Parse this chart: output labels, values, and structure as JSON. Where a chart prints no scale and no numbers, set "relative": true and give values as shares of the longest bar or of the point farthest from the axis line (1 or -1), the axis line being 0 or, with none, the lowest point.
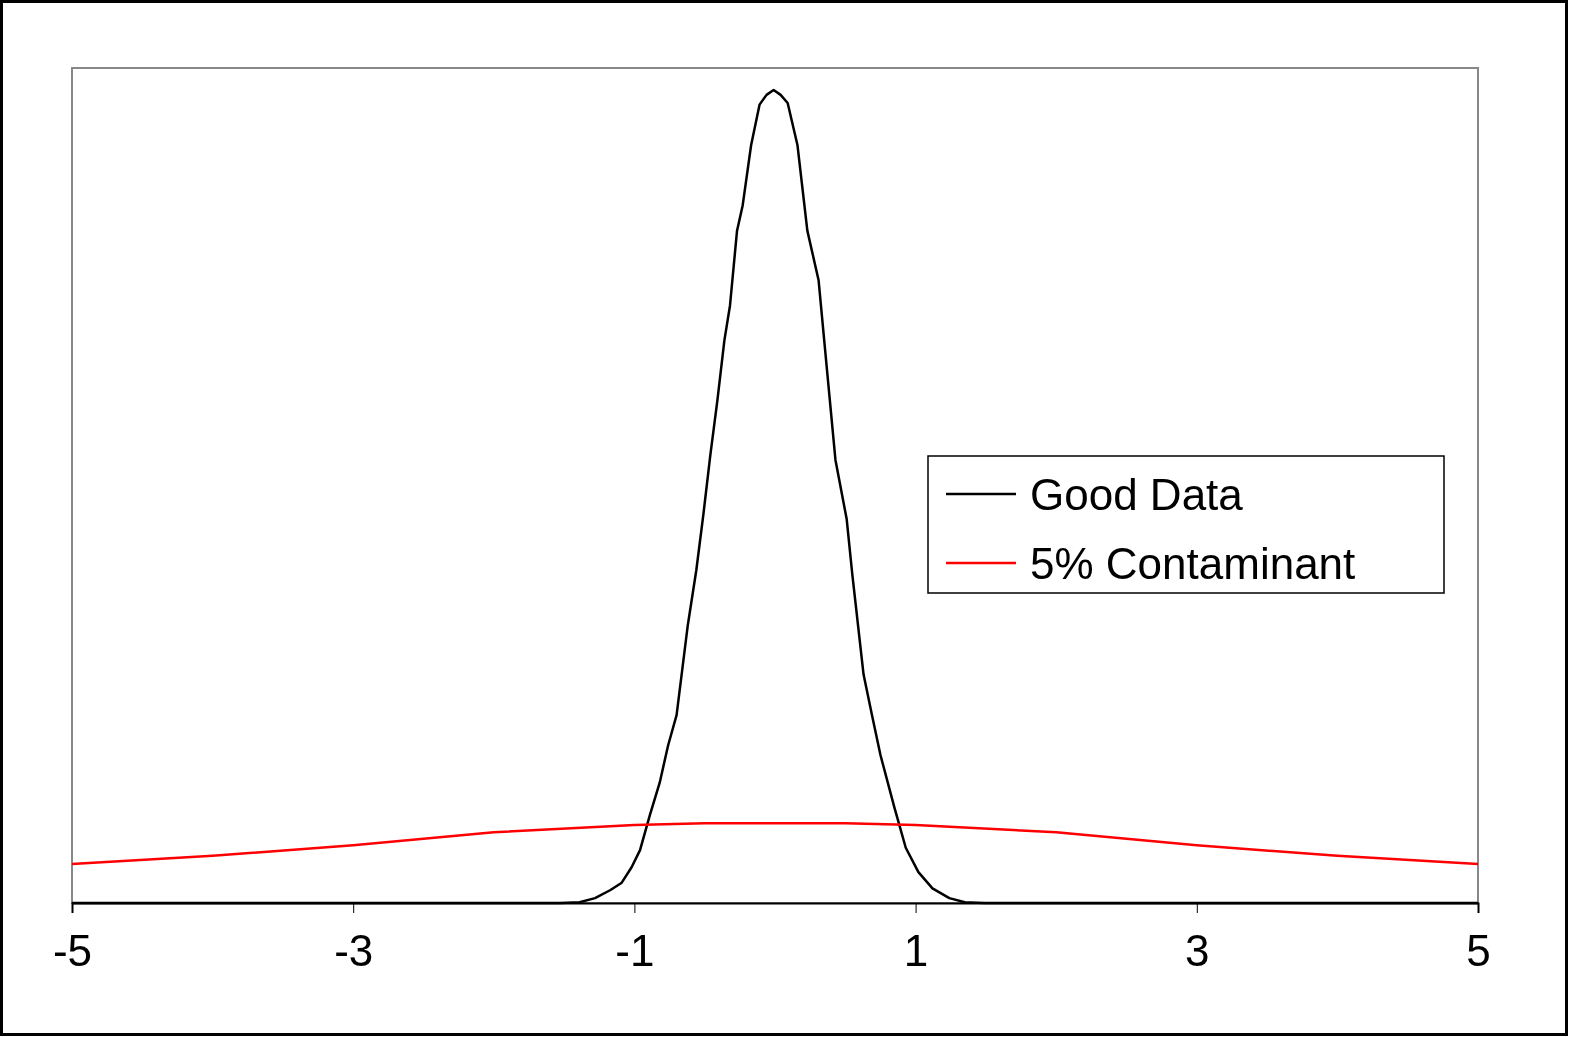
{
  "chart_data": {
    "type": "line",
    "relative": true,
    "xlim": [
      -5,
      5
    ],
    "xticks": [
      -5,
      -3,
      -1,
      1,
      3,
      5
    ],
    "legend": "right",
    "grid": false,
    "series": [
      {
        "name": "Good Data",
        "color": "#000000",
        "x": [
          -5,
          -1.53,
          -1.39,
          -1.28,
          -1.17,
          -1.09,
          -1.02,
          -0.96,
          -0.89,
          -0.82,
          -0.76,
          -0.7,
          -0.62,
          -0.56,
          -0.51,
          -0.46,
          -0.41,
          -0.36,
          -0.32,
          -0.27,
          -0.23,
          -0.17,
          -0.11,
          -0.06,
          -0.01,
          0.04,
          0.09,
          0.16,
          0.23,
          0.31,
          0.35,
          0.43,
          0.51,
          0.55,
          0.63,
          0.69,
          0.75,
          0.85,
          0.93,
          1.02,
          1.12,
          1.24,
          1.35,
          1.49,
          5
        ],
        "values": [
          0,
          0,
          0.001,
          0.006,
          0.016,
          0.025,
          0.044,
          0.065,
          0.108,
          0.148,
          0.194,
          0.231,
          0.342,
          0.409,
          0.477,
          0.551,
          0.618,
          0.692,
          0.735,
          0.827,
          0.858,
          0.932,
          0.982,
          0.994,
          1,
          0.994,
          0.984,
          0.932,
          0.827,
          0.766,
          0.692,
          0.545,
          0.472,
          0.404,
          0.281,
          0.231,
          0.182,
          0.117,
          0.068,
          0.038,
          0.018,
          0.006,
          0.001,
          0,
          0
        ]
      },
      {
        "name": "5% Contaminant",
        "color": "#ff0000",
        "x": [
          -5,
          -4,
          -3,
          -2,
          -1,
          -0.5,
          0,
          0.5,
          1,
          2,
          3,
          4,
          5
        ],
        "values": [
          0.048,
          0.058,
          0.071,
          0.087,
          0.096,
          0.098,
          0.098,
          0.098,
          0.096,
          0.087,
          0.071,
          0.058,
          0.048
        ]
      }
    ]
  }
}
